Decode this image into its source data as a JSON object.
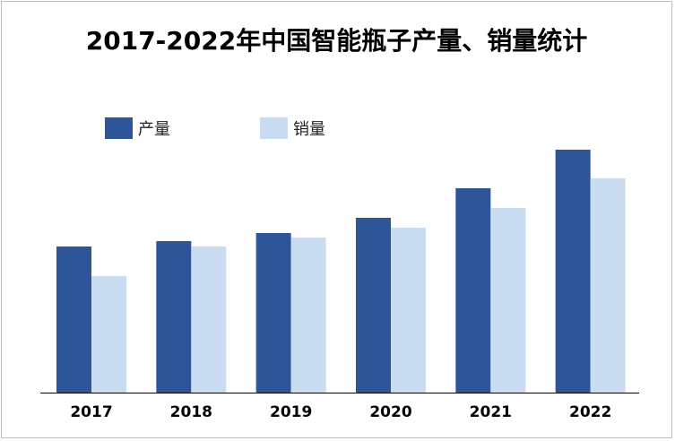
{
  "chart_data": {
    "type": "bar",
    "title": "2017-2022年中国智能瓶子产量、销量统计",
    "categories": [
      "2017",
      "2018",
      "2019",
      "2020",
      "2021",
      "2022"
    ],
    "series": [
      {
        "name": "产量",
        "color": "#2e5597",
        "values": [
          163,
          169,
          178,
          195,
          228,
          271
        ]
      },
      {
        "name": "销量",
        "color": "#c9dcf1",
        "values": [
          130,
          163,
          173,
          184,
          206,
          239
        ]
      }
    ],
    "ylim": [
      0,
      300
    ],
    "grid": false,
    "legend_position": "top-left",
    "xlabel": "",
    "ylabel": ""
  }
}
